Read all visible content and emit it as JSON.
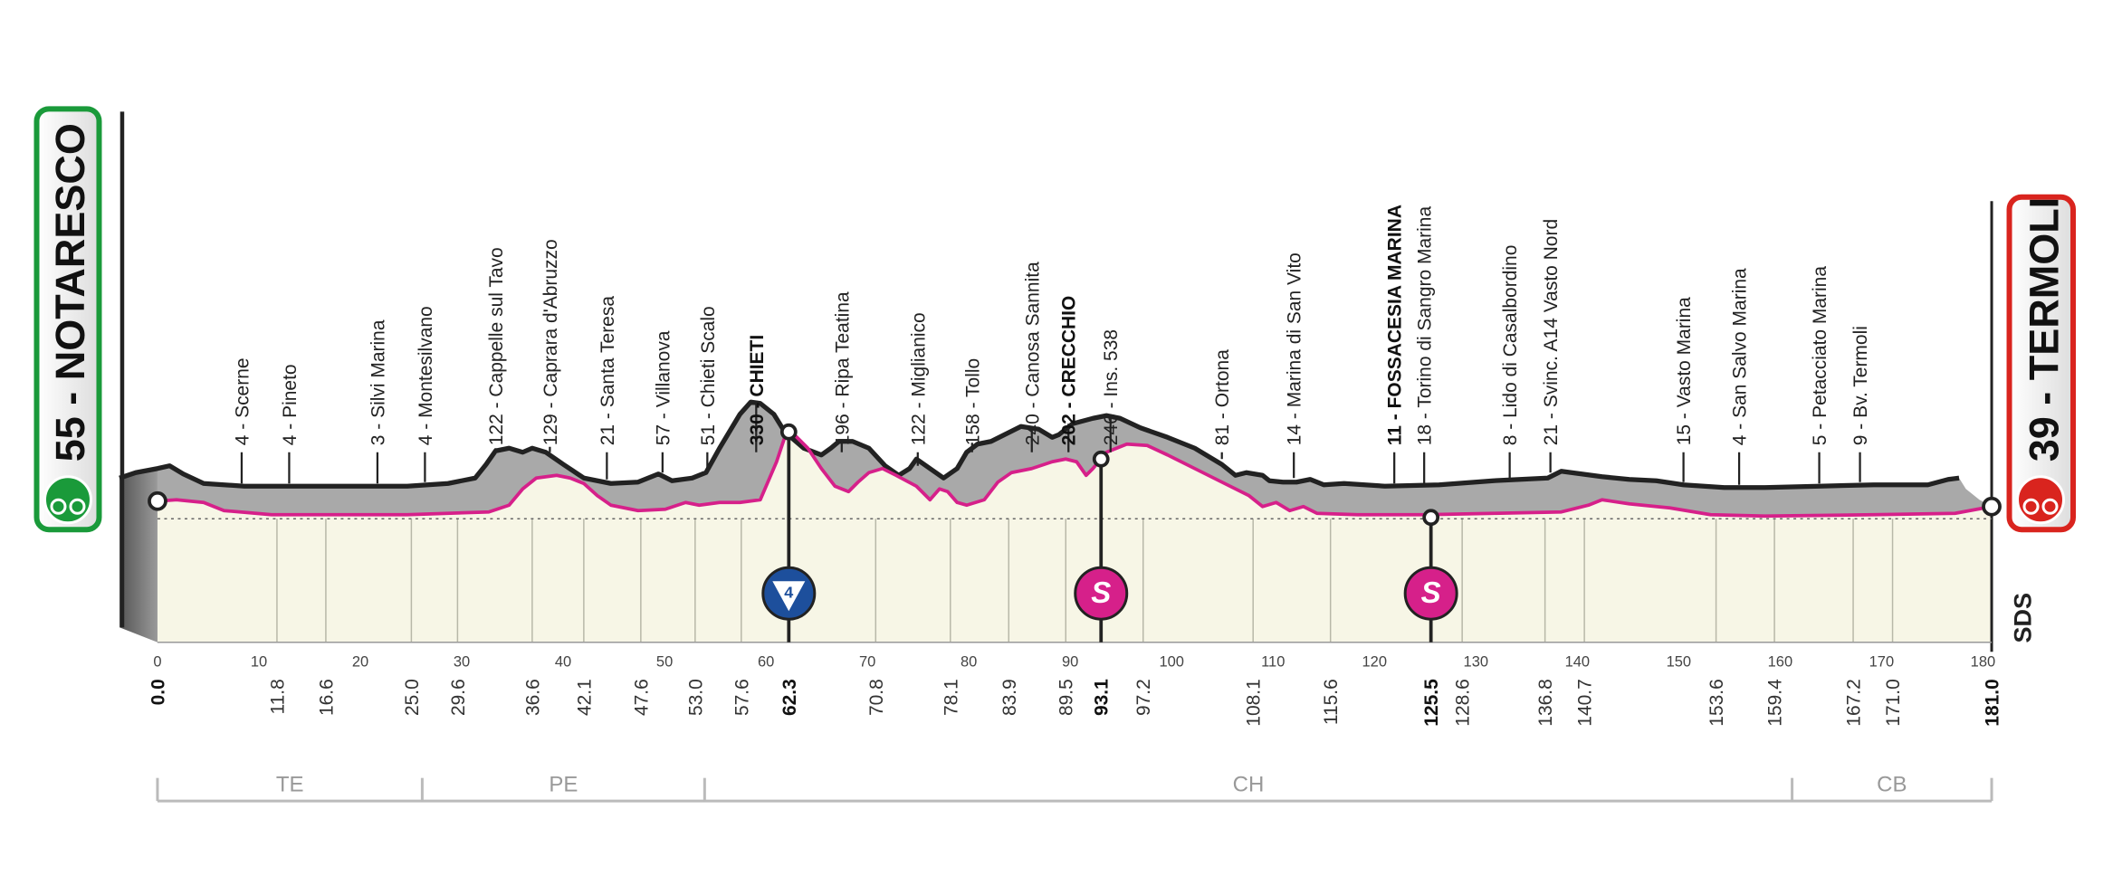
{
  "start": {
    "label": "55 - NOTARESCO"
  },
  "finish": {
    "label": "39 - TERMOLI"
  },
  "waypoints": [
    "4 - Scerne",
    "4 - Pineto",
    "3 - Silvi Marina",
    "4 - Montesilvano",
    "122 - Cappelle sul Tavo",
    "129 - Caprara d'Abruzzo",
    "21 - Santa Teresa",
    "57 - Villanova",
    "51 - Chieti Scalo",
    "330 - CHIETI",
    "196 - Ripa Teatina",
    "122 - Miglianico",
    "158 - Tollo",
    "240 - Canosa Sannita",
    "202 - CRECCHIO",
    "246 - Ins. 538",
    "81 - Ortona",
    "14 - Marina di San Vito",
    "11 - FOSSACESIA MARINA",
    "18 - Torino di Sangro Marina",
    "8 - Lido di Casalbordino",
    "21 - Svinc. A14 Vasto Nord",
    "15 - Vasto Marina",
    "4 - San Salvo Marina",
    "5 - Petacciato Marina",
    "9 - Bv. Termoli"
  ],
  "km_marks": [
    "0.0",
    "11.8",
    "16.6",
    "25.0",
    "29.6",
    "36.6",
    "42.1",
    "47.6",
    "53.0",
    "57.6",
    "62.3",
    "70.8",
    "78.1",
    "83.9",
    "89.5",
    "93.1",
    "97.2",
    "108.1",
    "115.6",
    "125.5",
    "128.6",
    "136.8",
    "140.7",
    "153.6",
    "159.4",
    "167.2",
    "171.0",
    "181.0"
  ],
  "axis_ticks": [
    "0",
    "10",
    "20",
    "30",
    "40",
    "50",
    "60",
    "70",
    "80",
    "90",
    "100",
    "110",
    "120",
    "130",
    "140",
    "150",
    "160",
    "170",
    "180"
  ],
  "regions": [
    "TE",
    "PE",
    "CH",
    "CB"
  ],
  "markers": [
    "4",
    "S",
    "S"
  ],
  "logo": "SDS"
}
